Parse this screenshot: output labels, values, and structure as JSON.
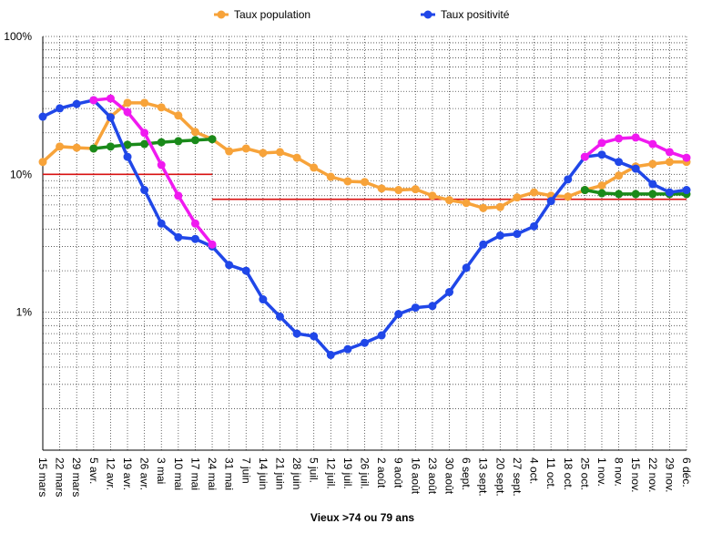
{
  "chart_data": {
    "type": "line",
    "title": "Vieux >74 ou 79 ans",
    "categories": [
      "15 mars",
      "22 mars",
      "29 mars",
      "5 avr.",
      "12 avr.",
      "19 avr.",
      "26 avr.",
      "3 mai",
      "10 mai",
      "17 mai",
      "24 mai",
      "31 mai",
      "7 juin",
      "14 juin",
      "21 juin",
      "28 juin",
      "5 juil.",
      "12 juil.",
      "19 juil.",
      "26 juil.",
      "2 août",
      "9 août",
      "16 août",
      "23 août",
      "30 août",
      "6 sept.",
      "13 sept.",
      "20 sept.",
      "27 sept.",
      "4 oct.",
      "11 oct.",
      "18 oct.",
      "25 oct.",
      "1 nov.",
      "8 nov.",
      "15 nov.",
      "22 nov.",
      "29 nov.",
      "6 déc."
    ],
    "log_scale": true,
    "ylim": [
      0.1,
      100
    ],
    "yticks": [
      {
        "value": 1,
        "label": "1%"
      },
      {
        "value": 10,
        "label": "10%"
      },
      {
        "value": 100,
        "label": "100%"
      }
    ],
    "grid": true,
    "legend": "top",
    "series": [
      {
        "color": "#d81010",
        "markers": false,
        "values": [
          10,
          10,
          10,
          10,
          10,
          10,
          10,
          10,
          10,
          10,
          10,
          null,
          null,
          null,
          null,
          null,
          null,
          null,
          null,
          null,
          null,
          null,
          null,
          null,
          null,
          null,
          null,
          null,
          null,
          null,
          null,
          null,
          null,
          null,
          null,
          null,
          null,
          null,
          null
        ]
      },
      {
        "color": "#d81010",
        "markers": false,
        "values": [
          null,
          null,
          null,
          null,
          null,
          null,
          null,
          null,
          null,
          null,
          6.6,
          6.6,
          6.6,
          6.6,
          6.6,
          6.6,
          6.6,
          6.6,
          6.6,
          6.6,
          6.6,
          6.6,
          6.6,
          6.6,
          6.6,
          6.6,
          6.6,
          6.6,
          6.6,
          6.6,
          6.6,
          6.6,
          6.6,
          6.6,
          6.6,
          6.6,
          6.6,
          6.6,
          6.6
        ]
      },
      {
        "name": "Taux population",
        "color": "#f7a33a",
        "markers": true,
        "values": [
          12.3,
          15.9,
          15.6,
          15.4,
          26.2,
          33,
          33,
          30.6,
          26.7,
          20.3,
          18,
          14.7,
          15.4,
          14.3,
          14.5,
          13.2,
          11.2,
          9.6,
          8.9,
          8.8,
          7.9,
          7.7,
          7.8,
          7.0,
          6.5,
          6.2,
          5.7,
          5.8,
          6.8,
          7.4,
          7.0,
          6.9,
          7.7,
          8.3,
          9.8,
          11.4,
          11.9,
          12.3,
          12.3
        ]
      },
      {
        "color": "#1a8a1a",
        "markers": true,
        "values": [
          null,
          null,
          null,
          15.4,
          15.9,
          16.4,
          16.6,
          17.1,
          17.4,
          17.7,
          18,
          null,
          null,
          null,
          null,
          null,
          null,
          null,
          null,
          null,
          null,
          null,
          null,
          null,
          null,
          null,
          null,
          null,
          null,
          null,
          null,
          null,
          7.7,
          7.3,
          7.2,
          7.2,
          7.2,
          7.2,
          7.2
        ]
      },
      {
        "name": "Taux positivité",
        "color": "#2047e8",
        "markers": true,
        "values": [
          26.2,
          30.1,
          32.4,
          34.5,
          25.9,
          13.4,
          7.7,
          4.4,
          3.5,
          3.4,
          3.0,
          2.2,
          2.0,
          1.24,
          0.93,
          0.7,
          0.67,
          0.49,
          0.54,
          0.6,
          0.68,
          0.97,
          1.08,
          1.11,
          1.4,
          2.1,
          3.1,
          3.6,
          3.7,
          4.2,
          6.4,
          9.2,
          13.4,
          13.9,
          12.3,
          11.0,
          8.5,
          7.4,
          7.7
        ]
      },
      {
        "color": "#f019f0",
        "markers": true,
        "values": [
          null,
          null,
          null,
          34.5,
          35.5,
          28.3,
          20,
          11.7,
          7.0,
          4.4,
          3.1,
          null,
          null,
          null,
          null,
          null,
          null,
          null,
          null,
          null,
          null,
          null,
          null,
          null,
          null,
          null,
          null,
          null,
          null,
          null,
          null,
          null,
          13.4,
          16.9,
          18.2,
          18.5,
          16.6,
          14.5,
          13.2
        ]
      }
    ]
  }
}
